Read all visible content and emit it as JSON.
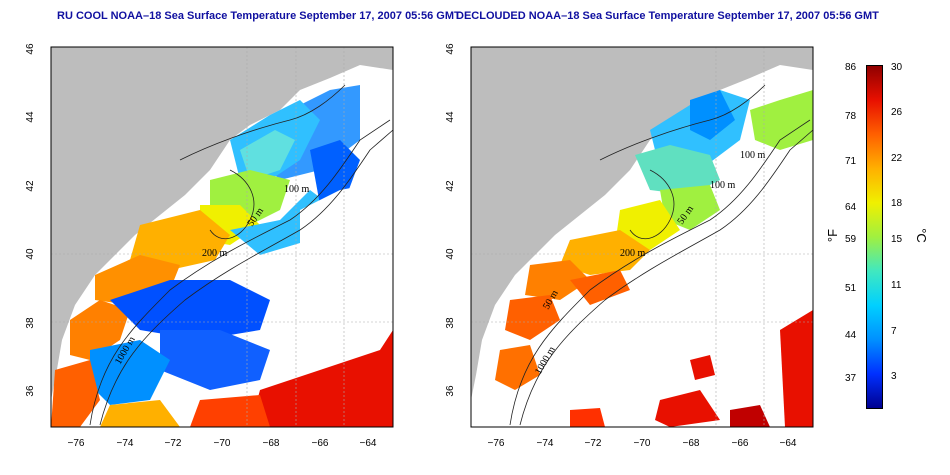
{
  "panels": [
    {
      "id": "left",
      "title": "RU COOL NOAA–18 Sea Surface Temperature September 17, 2007 05:56 GMT",
      "contour_labels": [
        "50 m",
        "100 m",
        "200 m",
        "1000 m"
      ]
    },
    {
      "id": "right",
      "title": "DECLOUDED NOAA–18 Sea Surface Temperature September 17, 2007 05:56 GMT",
      "contour_labels": [
        "100 m",
        "100 m",
        "50 m",
        "200 m",
        "50 m",
        "1000 m"
      ]
    }
  ],
  "axes": {
    "x_ticks": [
      "−76",
      "−74",
      "−72",
      "−70",
      "−68",
      "−66",
      "−64"
    ],
    "y_ticks": [
      "36",
      "38",
      "40",
      "42",
      "44",
      "46"
    ],
    "xlim": [
      -77,
      -63
    ],
    "ylim": [
      35,
      46
    ]
  },
  "colorbar": {
    "fahrenheit_label": "°F",
    "celsius_label": "°C",
    "fahrenheit_ticks": [
      "86",
      "78",
      "71",
      "64",
      "59",
      "51",
      "44",
      "37"
    ],
    "celsius_ticks": [
      "30",
      "26",
      "22",
      "18",
      "15",
      "11",
      "7",
      "3"
    ],
    "colors": [
      "#000090",
      "#0030ff",
      "#0090ff",
      "#00d0ff",
      "#40e8c0",
      "#a0f040",
      "#f0f000",
      "#ffb000",
      "#ff6000",
      "#e81000",
      "#900000"
    ]
  },
  "colors": {
    "land": "#bdbdbd",
    "cloud": "#ffffff",
    "title": "#1010a0",
    "grid": "#aaaaaa"
  }
}
